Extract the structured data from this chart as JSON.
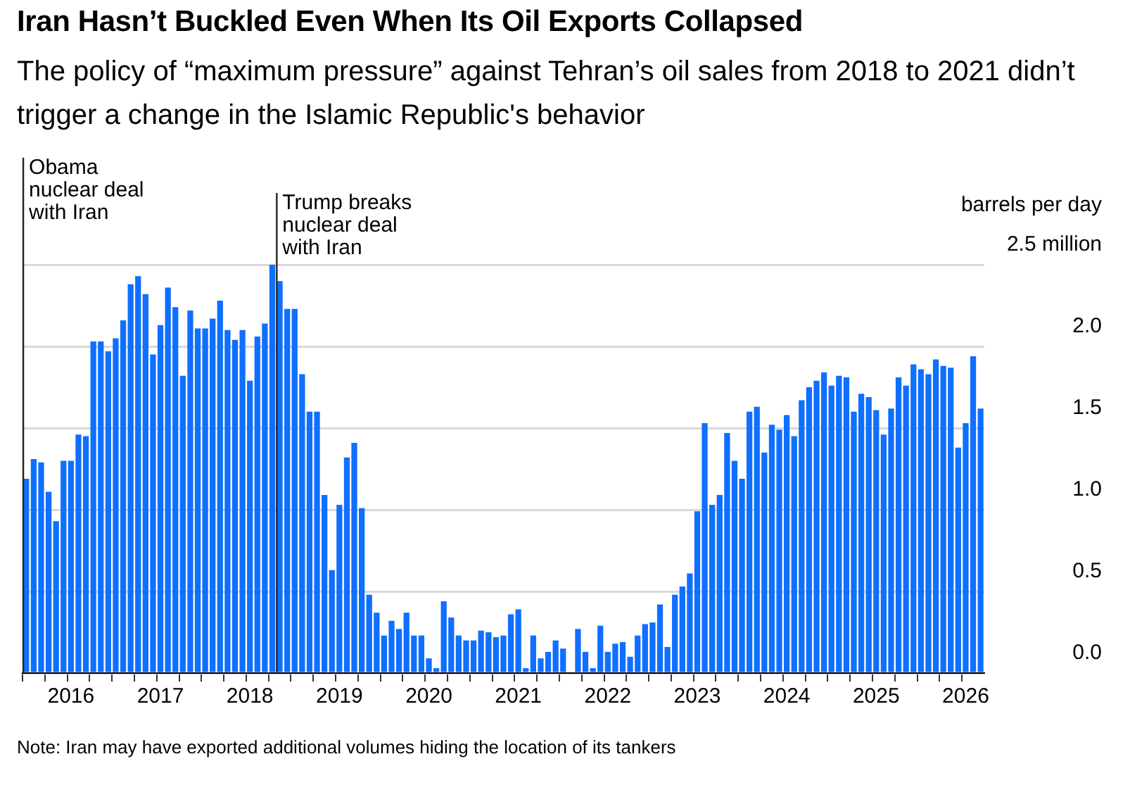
{
  "chart_data": {
    "type": "bar",
    "title": "Iran Hasn’t Buckled Even When Its Oil Exports Collapsed",
    "subtitle": "The policy of “maximum pressure” against Tehran’s oil sales from 2018 to 2021 didn’t trigger a change in the Islamic Republic's behavior",
    "ylabel": "barrels per day",
    "categories": [
      null,
      null,
      null,
      null,
      null,
      null,
      "2016",
      null,
      null,
      null,
      null,
      null,
      null,
      null,
      null,
      null,
      null,
      null,
      "2017",
      null,
      null,
      null,
      null,
      null,
      null,
      null,
      null,
      null,
      null,
      null,
      "2018",
      null,
      null,
      null,
      null,
      null,
      null,
      null,
      null,
      null,
      null,
      null,
      "2019",
      null,
      null,
      null,
      null,
      null,
      null,
      null,
      null,
      null,
      null,
      null,
      "2020",
      null,
      null,
      null,
      null,
      null,
      null,
      null,
      null,
      null,
      null,
      null,
      "2021",
      null,
      null,
      null,
      null,
      null,
      null,
      null,
      null,
      null,
      null,
      null,
      "2022",
      null,
      null,
      null,
      null,
      null,
      null,
      null,
      null,
      null,
      null,
      null,
      "2023",
      null,
      null,
      null,
      null,
      null,
      null,
      null,
      null,
      null,
      null,
      null,
      "2024",
      null,
      null,
      null,
      null,
      null,
      null,
      null,
      null,
      null,
      null,
      null,
      "2025",
      null,
      null,
      null,
      null,
      null,
      null,
      null,
      null,
      null,
      null,
      null,
      "2026",
      null,
      null
    ],
    "values": [
      1.19,
      1.31,
      1.29,
      1.11,
      0.93,
      1.3,
      1.3,
      1.46,
      1.45,
      2.03,
      2.03,
      1.97,
      2.05,
      2.16,
      2.38,
      2.43,
      2.32,
      1.95,
      2.13,
      2.36,
      2.24,
      1.82,
      2.22,
      2.11,
      2.11,
      2.17,
      2.28,
      2.1,
      2.04,
      2.1,
      1.79,
      2.06,
      2.14,
      2.5,
      2.4,
      2.23,
      2.23,
      1.83,
      1.6,
      1.6,
      1.09,
      0.63,
      1.03,
      1.32,
      1.41,
      1.01,
      0.48,
      0.37,
      0.23,
      0.32,
      0.27,
      0.37,
      0.23,
      0.23,
      0.09,
      0.03,
      0.44,
      0.34,
      0.23,
      0.2,
      0.2,
      0.26,
      0.25,
      0.22,
      0.23,
      0.36,
      0.39,
      0.03,
      0.23,
      0.09,
      0.13,
      0.2,
      0.15,
      null,
      0.27,
      0.13,
      0.03,
      0.29,
      0.13,
      0.18,
      0.19,
      0.1,
      0.23,
      0.3,
      0.31,
      0.42,
      0.16,
      0.48,
      0.53,
      0.61,
      0.99,
      1.53,
      1.03,
      1.09,
      1.47,
      1.3,
      1.19,
      1.6,
      1.63,
      1.35,
      1.52,
      1.49,
      1.58,
      1.45,
      1.67,
      1.75,
      1.79,
      1.84,
      1.76,
      1.82,
      1.81,
      1.6,
      1.71,
      1.69,
      1.61,
      1.46,
      1.62,
      1.81,
      1.76,
      1.89,
      1.86,
      1.83,
      1.92,
      1.88,
      1.87,
      1.38,
      1.53,
      1.94,
      1.62
    ],
    "color": "#0f6fff",
    "ylim": [
      0,
      2.5
    ],
    "yticks": [
      {
        "value": 0,
        "label": "0.0"
      },
      {
        "value": 0.5,
        "label": "0.5"
      },
      {
        "value": 1,
        "label": "1.0"
      },
      {
        "value": 1.5,
        "label": "1.5"
      },
      {
        "value": 2,
        "label": "2.0"
      },
      {
        "value": 2.5,
        "label": "2.5 million"
      }
    ],
    "grid": "y",
    "legend": false,
    "annotations": [
      "Obama nuclear deal with Iran",
      "Trump breaks nuclear deal with Iran",
      "Note: Iran may have exported additional volumes hiding the location of its tankers"
    ]
  }
}
